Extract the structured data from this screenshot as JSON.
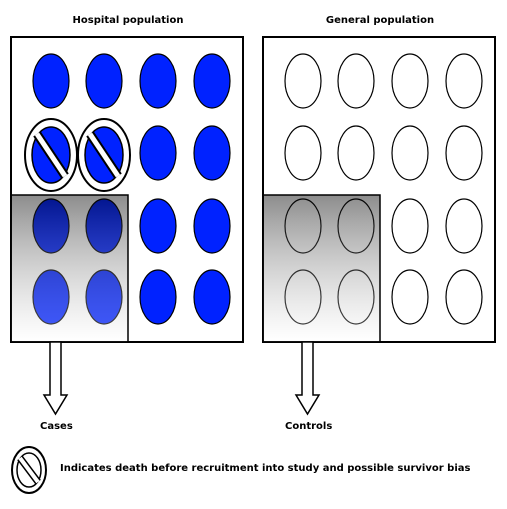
{
  "hospital": {
    "title": "Hospital population",
    "fill": "#0022ff",
    "stroke": "#000000"
  },
  "general": {
    "title": "General population",
    "fill": "#ffffff",
    "stroke": "#000000"
  },
  "arrows": {
    "cases_label": "Cases",
    "controls_label": "Controls"
  },
  "legend": {
    "text": "Indicates death before recruitment into study and possible survivor bias",
    "icon": "no-entry-icon"
  },
  "grid": {
    "rows": 4,
    "cols": 4,
    "excluded": [
      [
        1,
        0
      ],
      [
        1,
        1
      ]
    ]
  }
}
